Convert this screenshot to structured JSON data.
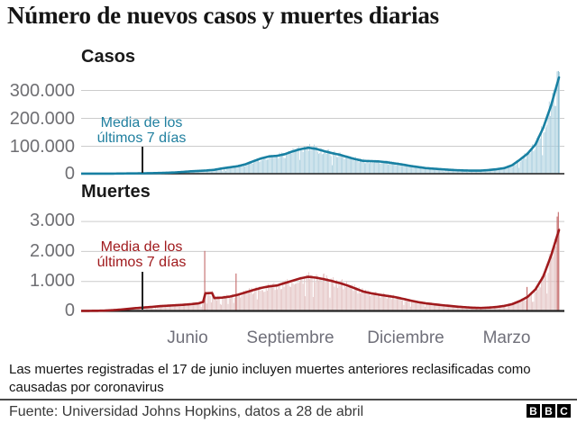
{
  "title": "Número de nuevos casos y muertes diarias",
  "x_axis": {
    "labels": [
      "Junio",
      "Septiembre",
      "Diciembre",
      "Marzo"
    ]
  },
  "footnote": "Las muertes registradas el 17 de junio incluyen muertes anteriores reclasificadas como causadas por coronavirus",
  "source": "Fuente: Universidad Johns Hopkins, datos a 28 de abril",
  "logo_letters": [
    "B",
    "B",
    "C"
  ],
  "styles": {
    "grid": "#cccccc",
    "axis": "#222222",
    "tick_text": "#6f6f73"
  },
  "chart_data": [
    {
      "type": "bar+line",
      "title": "Casos",
      "annotation": {
        "line1": "Media de los",
        "line2": "últimos 7 días"
      },
      "yticks": [
        "300.000",
        "200.000",
        "100.000",
        "0"
      ],
      "ytick_values": [
        300000,
        200000,
        100000,
        0
      ],
      "ylim": [
        0,
        372000
      ],
      "x_range_days": 427,
      "series": [
        {
          "name": "Nuevos casos diarios",
          "type": "bar",
          "note": "barras diarias ≈ media de 7 días con variación"
        },
        {
          "name": "Media de los últimos 7 días",
          "type": "line",
          "points": [
            [
              0,
              50
            ],
            [
              7,
              70
            ],
            [
              14,
              100
            ],
            [
              21,
              150
            ],
            [
              28,
              300
            ],
            [
              35,
              600
            ],
            [
              42,
              900
            ],
            [
              49,
              1200
            ],
            [
              56,
              1500
            ],
            [
              63,
              1900
            ],
            [
              70,
              2600
            ],
            [
              77,
              3500
            ],
            [
              84,
              4600
            ],
            [
              91,
              6500
            ],
            [
              98,
              8600
            ],
            [
              105,
              10000
            ],
            [
              112,
              11500
            ],
            [
              119,
              14000
            ],
            [
              126,
              19000
            ],
            [
              133,
              23000
            ],
            [
              140,
              27000
            ],
            [
              147,
              34000
            ],
            [
              154,
              45000
            ],
            [
              161,
              55000
            ],
            [
              168,
              62000
            ],
            [
              175,
              64000
            ],
            [
              182,
              70000
            ],
            [
              189,
              80000
            ],
            [
              196,
              88000
            ],
            [
              203,
              93000
            ],
            [
              210,
              89000
            ],
            [
              217,
              81000
            ],
            [
              224,
              74000
            ],
            [
              231,
              68000
            ],
            [
              238,
              60000
            ],
            [
              245,
              52000
            ],
            [
              252,
              46000
            ],
            [
              259,
              45000
            ],
            [
              266,
              44000
            ],
            [
              273,
              41000
            ],
            [
              280,
              37000
            ],
            [
              287,
              33000
            ],
            [
              294,
              28000
            ],
            [
              301,
              24000
            ],
            [
              308,
              20000
            ],
            [
              315,
              18000
            ],
            [
              322,
              16000
            ],
            [
              329,
              14000
            ],
            [
              336,
              12500
            ],
            [
              343,
              11500
            ],
            [
              350,
              11000
            ],
            [
              357,
              11200
            ],
            [
              364,
              13000
            ],
            [
              371,
              16000
            ],
            [
              378,
              20000
            ],
            [
              385,
              30000
            ],
            [
              392,
              50000
            ],
            [
              399,
              72000
            ],
            [
              406,
              105000
            ],
            [
              413,
              165000
            ],
            [
              420,
              245000
            ],
            [
              427,
              345000
            ]
          ]
        }
      ],
      "spike_bars": [
        [
          426,
          368000
        ]
      ],
      "colors": {
        "line": "#1880a2",
        "fill": "#a9cede",
        "spike": "#86b9cd",
        "annotation_text": "#1f7f9f"
      }
    },
    {
      "type": "bar+line",
      "title": "Muertes",
      "annotation": {
        "line1": "Media de los",
        "line2": "últimos 7 días"
      },
      "yticks": [
        "3.000",
        "2.000",
        "1.000",
        "0"
      ],
      "ytick_values": [
        3000,
        2000,
        1000,
        0
      ],
      "ylim": [
        0,
        3350
      ],
      "x_range_days": 427,
      "series": [
        {
          "name": "Muertes diarias",
          "type": "bar",
          "note": "barras diarias ≈ media de 7 días con variación; pico del 17 de junio = 2003"
        },
        {
          "name": "Media de los últimos 7 días",
          "type": "line",
          "points": [
            [
              0,
              1
            ],
            [
              7,
              3
            ],
            [
              14,
              6
            ],
            [
              21,
              12
            ],
            [
              28,
              25
            ],
            [
              35,
              45
            ],
            [
              42,
              70
            ],
            [
              49,
              95
            ],
            [
              56,
              115
            ],
            [
              63,
              135
            ],
            [
              70,
              160
            ],
            [
              77,
              175
            ],
            [
              84,
              190
            ],
            [
              91,
              205
            ],
            [
              98,
              225
            ],
            [
              105,
              255
            ],
            [
              109,
              300
            ],
            [
              111,
              590
            ],
            [
              117,
              600
            ],
            [
              119,
              430
            ],
            [
              126,
              445
            ],
            [
              133,
              480
            ],
            [
              140,
              540
            ],
            [
              147,
              620
            ],
            [
              154,
              700
            ],
            [
              161,
              770
            ],
            [
              168,
              820
            ],
            [
              175,
              850
            ],
            [
              182,
              930
            ],
            [
              189,
              1010
            ],
            [
              196,
              1090
            ],
            [
              203,
              1140
            ],
            [
              210,
              1110
            ],
            [
              217,
              1060
            ],
            [
              224,
              1000
            ],
            [
              231,
              930
            ],
            [
              238,
              850
            ],
            [
              245,
              750
            ],
            [
              252,
              650
            ],
            [
              259,
              590
            ],
            [
              266,
              545
            ],
            [
              273,
              505
            ],
            [
              280,
              465
            ],
            [
              287,
              410
            ],
            [
              294,
              350
            ],
            [
              301,
              295
            ],
            [
              308,
              255
            ],
            [
              315,
              225
            ],
            [
              322,
              195
            ],
            [
              329,
              170
            ],
            [
              336,
              145
            ],
            [
              343,
              125
            ],
            [
              350,
              108
            ],
            [
              357,
              100
            ],
            [
              364,
              112
            ],
            [
              371,
              132
            ],
            [
              378,
              168
            ],
            [
              385,
              225
            ],
            [
              392,
              330
            ],
            [
              399,
              470
            ],
            [
              406,
              720
            ],
            [
              413,
              1150
            ],
            [
              420,
              1850
            ],
            [
              427,
              2700
            ]
          ]
        }
      ],
      "spike_bars": [
        [
          110,
          2003
        ],
        [
          138,
          1250
        ],
        [
          398,
          800
        ],
        [
          425,
          3150
        ],
        [
          426,
          3300
        ]
      ],
      "colors": {
        "line": "#a01a1d",
        "fill": "#e2c1c1",
        "spike": "#c46a6a",
        "annotation_text": "#a01a1d"
      }
    }
  ]
}
